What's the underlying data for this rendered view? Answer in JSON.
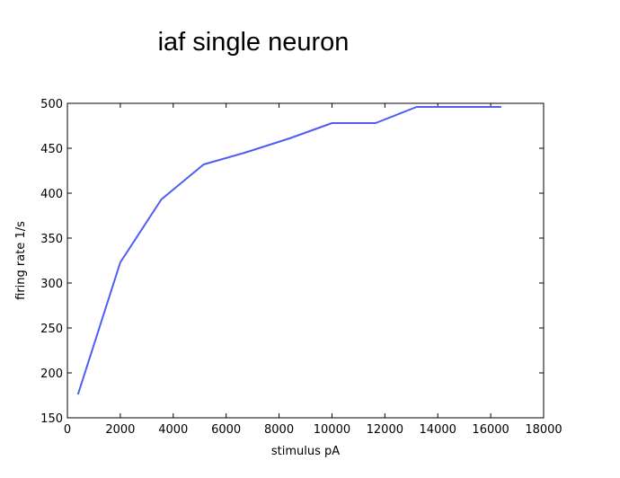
{
  "chart_data": {
    "type": "line",
    "title": "iaf  single neuron",
    "xlabel": "stimulus pA",
    "ylabel": "firing rate 1/s",
    "xlim": [
      0,
      18000
    ],
    "ylim": [
      150,
      500
    ],
    "xticks": [
      0,
      2000,
      4000,
      6000,
      8000,
      10000,
      12000,
      14000,
      16000,
      18000
    ],
    "yticks": [
      150,
      200,
      250,
      300,
      350,
      400,
      450,
      500
    ],
    "grid": false,
    "series": [
      {
        "color": "#4f5cf5",
        "x": [
          400,
          2000,
          3550,
          5150,
          6700,
          8400,
          10000,
          11650,
          13200,
          14800,
          16400
        ],
        "y": [
          176,
          323,
          393,
          432,
          445,
          461,
          478,
          478,
          496,
          496,
          496
        ]
      }
    ]
  }
}
